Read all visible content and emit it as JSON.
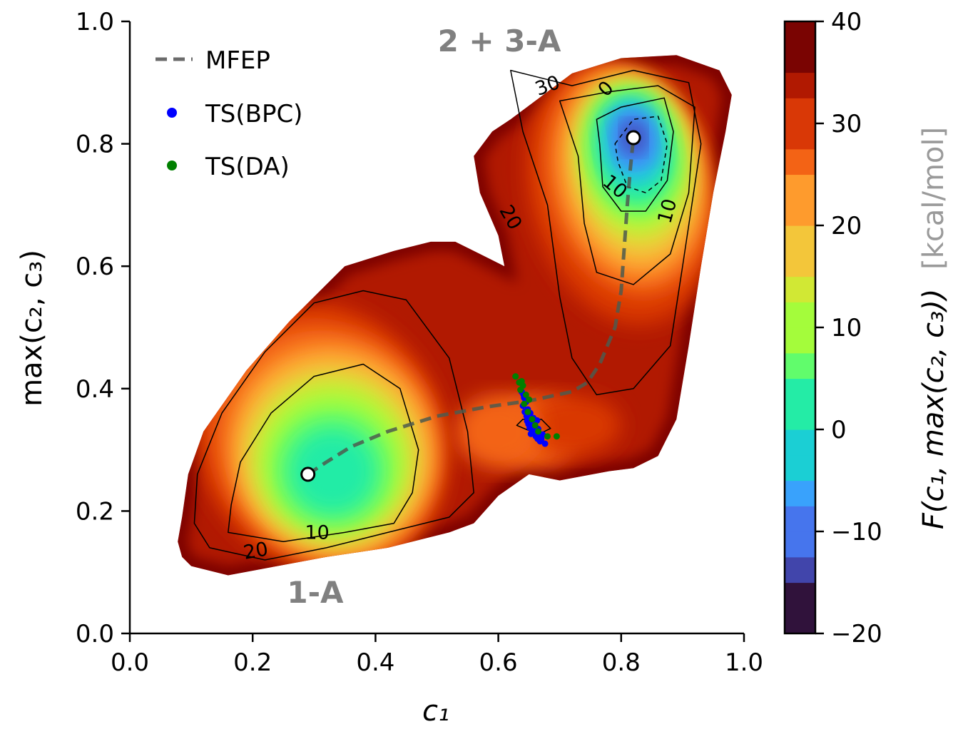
{
  "chart_data": {
    "type": "heatmap",
    "subtype": "free-energy-surface",
    "xlabel": "c₁",
    "ylabel": "max(c₂, c₃)",
    "xlim": [
      0.0,
      1.0
    ],
    "ylim": [
      0.0,
      1.0
    ],
    "xticks": [
      "0.0",
      "0.2",
      "0.4",
      "0.6",
      "0.8",
      "1.0"
    ],
    "yticks": [
      "0.0",
      "0.2",
      "0.4",
      "0.6",
      "0.8",
      "1.0"
    ],
    "colorbar": {
      "label": "F(c₁, max(c₂, c₃))",
      "unit": "[kcal/mol]",
      "range": [
        -20,
        40
      ],
      "ticks": [
        "−20",
        "−10",
        "0",
        "10",
        "20",
        "30",
        "40"
      ],
      "colormap": [
        "#30123b",
        "#4145ab",
        "#4675ed",
        "#39a2fc",
        "#1bcfd4",
        "#24eca6",
        "#61fc6c",
        "#a4fc3b",
        "#d1e834",
        "#f3c63a",
        "#fe9b2d",
        "#f36315",
        "#d93806",
        "#b11901",
        "#7a0402"
      ]
    },
    "contour_levels": [
      "-10",
      "0",
      "10",
      "20",
      "30"
    ],
    "contour_label_texts": [
      "30",
      "0",
      "10",
      "20",
      "10",
      "10",
      "20"
    ],
    "state_labels": [
      "2 + 3-A",
      "1-A"
    ],
    "legend": {
      "position": "upper-left",
      "entries": [
        {
          "label": "MFEP",
          "style": "dashed",
          "color": "#6b6b6b"
        },
        {
          "label": "TS(BPC)",
          "style": "marker",
          "color": "#0000ff"
        },
        {
          "label": "TS(DA)",
          "style": "marker",
          "color": "#008000"
        }
      ]
    },
    "minima": [
      {
        "name": "1-A",
        "x": 0.29,
        "y": 0.26
      },
      {
        "name": "2 + 3-A",
        "x": 0.82,
        "y": 0.81
      }
    ],
    "mfep": {
      "x": [
        0.29,
        0.32,
        0.36,
        0.42,
        0.5,
        0.58,
        0.65,
        0.72,
        0.745,
        0.765,
        0.79,
        0.8,
        0.805,
        0.81,
        0.815,
        0.82
      ],
      "y": [
        0.26,
        0.28,
        0.305,
        0.33,
        0.355,
        0.37,
        0.38,
        0.395,
        0.41,
        0.44,
        0.5,
        0.56,
        0.63,
        0.7,
        0.76,
        0.81
      ]
    },
    "ts_bpc": {
      "x": [
        0.638,
        0.642,
        0.645,
        0.64,
        0.648,
        0.652,
        0.646,
        0.65,
        0.655,
        0.658,
        0.654,
        0.66,
        0.662,
        0.656,
        0.649,
        0.643,
        0.647,
        0.651,
        0.657,
        0.661,
        0.664,
        0.668,
        0.653,
        0.659,
        0.665,
        0.67,
        0.641,
        0.644,
        0.663,
        0.672,
        0.676,
        0.666
      ],
      "y": [
        0.395,
        0.385,
        0.378,
        0.372,
        0.366,
        0.36,
        0.355,
        0.35,
        0.345,
        0.34,
        0.338,
        0.332,
        0.328,
        0.33,
        0.342,
        0.362,
        0.347,
        0.336,
        0.352,
        0.322,
        0.318,
        0.314,
        0.326,
        0.344,
        0.334,
        0.318,
        0.39,
        0.382,
        0.348,
        0.325,
        0.31,
        0.322
      ]
    },
    "ts_da": {
      "x": [
        0.628,
        0.634,
        0.64,
        0.636,
        0.645,
        0.65,
        0.642,
        0.648,
        0.655,
        0.66,
        0.665,
        0.68,
        0.695,
        0.638
      ],
      "y": [
        0.42,
        0.41,
        0.405,
        0.398,
        0.39,
        0.382,
        0.375,
        0.362,
        0.35,
        0.34,
        0.33,
        0.322,
        0.322,
        0.412
      ]
    }
  }
}
